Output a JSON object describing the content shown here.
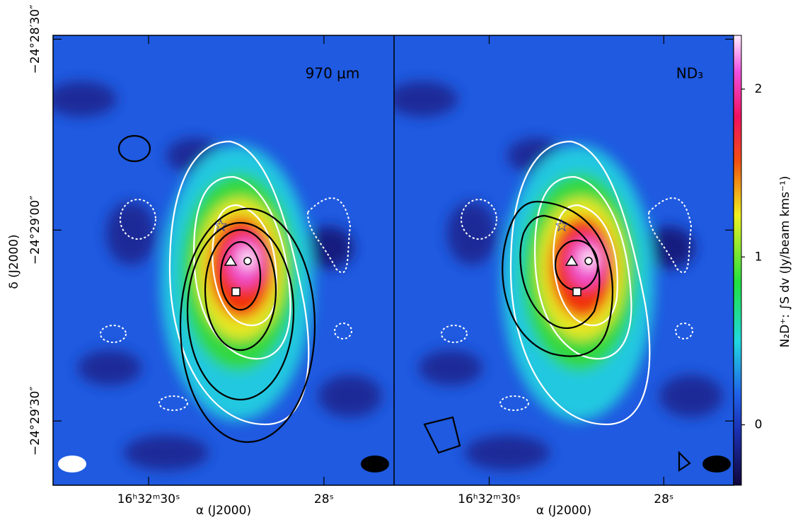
{
  "chart_data": {
    "type": "map",
    "panels": [
      {
        "label": "970 μm"
      },
      {
        "label": "ND₃"
      }
    ],
    "xlabel": "α (J2000)",
    "ylabel": "δ (J2000)",
    "xlim": [
      31.09,
      27.2
    ],
    "xticks": [
      {
        "value": 30,
        "label": "16ʰ32ᵐ30ˢ"
      },
      {
        "value": 28,
        "label": "28ˢ"
      }
    ],
    "ylim": [
      29.4,
      100.1
    ],
    "yticks": [
      {
        "value": 30,
        "label": "−24°28′30″"
      },
      {
        "value": 60,
        "label": "−24°29′00″"
      },
      {
        "value": 90,
        "label": "−24°29′30″"
      }
    ],
    "colorbar": {
      "label": "N₂D⁺: ∫S dv (Jy/beam kms⁻¹)",
      "clim": [
        -0.36,
        2.32
      ],
      "ticks": [
        0,
        1,
        2
      ]
    }
  }
}
